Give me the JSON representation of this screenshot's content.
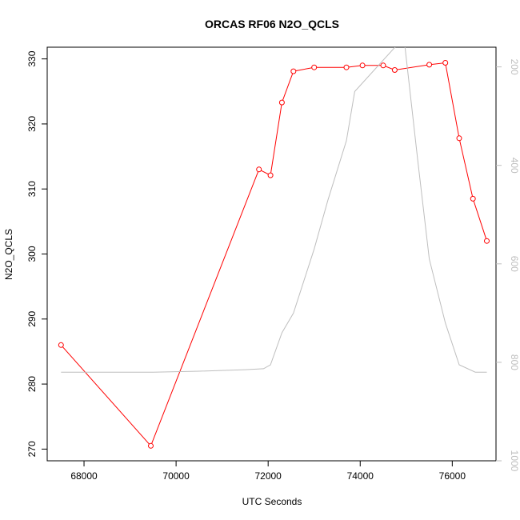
{
  "chart_data": {
    "type": "line",
    "title": "ORCAS RF06 N2O_QCLS",
    "xlabel": "UTC Seconds",
    "ylabel": "N2O_QCLS",
    "xlim": [
      67200,
      76950
    ],
    "ylim": [
      268.2,
      331.8
    ],
    "x_ticks": [
      68000,
      70000,
      72000,
      74000,
      76000
    ],
    "y_ticks": [
      270,
      280,
      290,
      300,
      310,
      320,
      330
    ],
    "secondary_axis": {
      "ylim": [
        1000,
        160
      ],
      "reversed": true,
      "ticks": [
        200,
        400,
        600,
        800,
        1000
      ],
      "color": "#bebebe"
    },
    "series": [
      {
        "color": "#ff0000",
        "marker": "open-circle",
        "x": [
          67500,
          69450,
          71800,
          72050,
          72300,
          72550,
          73000,
          73700,
          74050,
          74500,
          74750,
          75500,
          75850,
          76150,
          76450,
          76750
        ],
        "y": [
          286.0,
          270.5,
          313.0,
          312.1,
          323.3,
          328.1,
          328.7,
          328.7,
          329.0,
          329.0,
          328.3,
          329.1,
          329.4,
          317.8,
          308.5,
          302.0
        ]
      },
      {
        "color": "#bebebe",
        "axis": "secondary",
        "x": [
          67500,
          68500,
          69500,
          70500,
          71500,
          71900,
          72050,
          72300,
          72550,
          73000,
          73300,
          73700,
          73880,
          74950,
          75250,
          75500,
          75850,
          76150,
          76500,
          76750
        ],
        "y": [
          820,
          820,
          820,
          818,
          815,
          813,
          805,
          740,
          700,
          570,
          470,
          350,
          250,
          140,
          390,
          590,
          720,
          805,
          820,
          820
        ]
      }
    ]
  }
}
